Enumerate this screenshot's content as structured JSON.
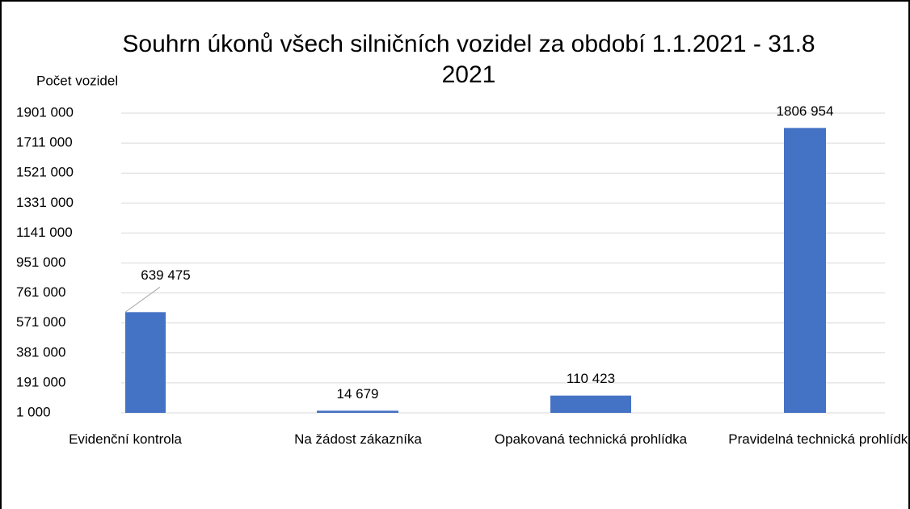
{
  "chart_data": {
    "type": "bar",
    "title": "Souhrn úkonů všech silničních vozidel za období 1.1.2021 - 31.8 2021",
    "y_label": "Počet vozidel",
    "categories": [
      "Evidenční kontrola",
      "Na žádost zákazníka",
      "Opakovaná technická prohlídka",
      "Pravidelná technická prohlídka"
    ],
    "values": [
      639475,
      14679,
      110423,
      1806954
    ],
    "value_labels": [
      "639 475",
      "14 679",
      "110 423",
      "1806 954"
    ],
    "color": "#4472c4",
    "ylim": [
      1000,
      1901000
    ],
    "yticks": [
      {
        "value": 1000,
        "label": "1 000"
      },
      {
        "value": 191000,
        "label": "191 000"
      },
      {
        "value": 381000,
        "label": "381 000"
      },
      {
        "value": 571000,
        "label": "571 000"
      },
      {
        "value": 761000,
        "label": "761 000"
      },
      {
        "value": 951000,
        "label": "951 000"
      },
      {
        "value": 1141000,
        "label": "1141 000"
      },
      {
        "value": 1331000,
        "label": "1331 000"
      },
      {
        "value": 1521000,
        "label": "1521 000"
      },
      {
        "value": 1711000,
        "label": "1711 000"
      },
      {
        "value": 1901000,
        "label": "1901 000"
      }
    ],
    "grid": true
  }
}
